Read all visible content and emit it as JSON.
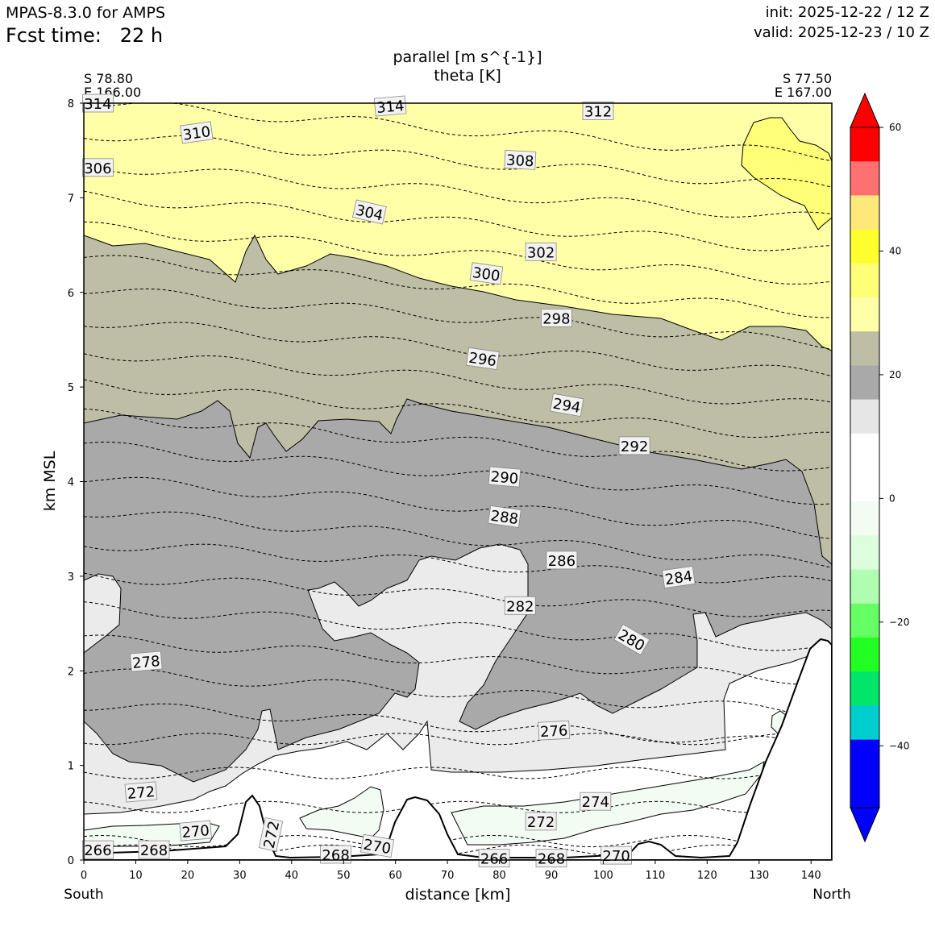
{
  "header": {
    "model": "MPAS-8.3.0 for AMPS",
    "fcst_time": "Fcst time:   22 h",
    "init": "init: 2025-12-22 / 12 Z",
    "valid": "valid: 2025-12-23 / 10 Z"
  },
  "chart_data": {
    "type": "cross-section contour",
    "title": "parallel [m s^{-1}]",
    "subtitle": "theta [K]",
    "xlabel": "distance [km]",
    "ylabel": "km MSL",
    "xlim": [
      0,
      144
    ],
    "ylim": [
      0,
      8
    ],
    "x_ticks": [
      0,
      10,
      20,
      30,
      40,
      50,
      60,
      70,
      80,
      90,
      100,
      110,
      120,
      130,
      140
    ],
    "y_ticks": [
      0,
      1,
      2,
      3,
      4,
      5,
      6,
      7,
      8
    ],
    "left_endpoint": {
      "lat": "S 78.80",
      "lon": "E 166.00",
      "direction": "South"
    },
    "right_endpoint": {
      "lat": "S 77.50",
      "lon": "E 167.00",
      "direction": "North"
    },
    "colorbar": {
      "ticks": [
        60,
        40,
        20,
        0,
        -20,
        -40
      ],
      "colors": [
        "#ff0000",
        "#ff0000",
        "#ff7070",
        "#ffe87a",
        "#ffff30",
        "#ffff78",
        "#ffffa8",
        "#bebea6",
        "#a9a9a9",
        "#e6e6e6",
        "#ffffff",
        "#ffffff",
        "#f2fcf2",
        "#ddfedd",
        "#b0feb0",
        "#66ff66",
        "#22ff22",
        "#00e66a",
        "#00cdcd",
        "#0000ff",
        "#0000ff",
        "#0000ff"
      ]
    },
    "fill_colors": {
      "pale_yellow": "#ffffa8",
      "yellow": "#ffff78",
      "olive_grey": "#bebea6",
      "dark_grey": "#a9a9a9",
      "light_grey": "#ebebeb",
      "white": "#ffffff",
      "pale_green": "#f2fcf2"
    },
    "theta_labels": [
      {
        "value": "314",
        "x": 2.7,
        "y": 8.0,
        "angle": 0
      },
      {
        "value": "314",
        "x": 59.0,
        "y": 7.97,
        "angle": -5
      },
      {
        "value": "312",
        "x": 99.0,
        "y": 7.92,
        "angle": 0
      },
      {
        "value": "310",
        "x": 21.7,
        "y": 7.69,
        "angle": -8
      },
      {
        "value": "308",
        "x": 84.0,
        "y": 7.4,
        "angle": 3
      },
      {
        "value": "306",
        "x": 2.7,
        "y": 7.32,
        "angle": 0
      },
      {
        "value": "304",
        "x": 55.0,
        "y": 6.85,
        "angle": 13
      },
      {
        "value": "302",
        "x": 88.0,
        "y": 6.43,
        "angle": 0
      },
      {
        "value": "300",
        "x": 77.5,
        "y": 6.2,
        "angle": 8
      },
      {
        "value": "298",
        "x": 91.0,
        "y": 5.73,
        "angle": 0
      },
      {
        "value": "296",
        "x": 76.8,
        "y": 5.3,
        "angle": 8
      },
      {
        "value": "294",
        "x": 93.0,
        "y": 4.81,
        "angle": 10
      },
      {
        "value": "292",
        "x": 106.0,
        "y": 4.38,
        "angle": 0
      },
      {
        "value": "290",
        "x": 81.0,
        "y": 4.05,
        "angle": 5
      },
      {
        "value": "288",
        "x": 81.0,
        "y": 3.63,
        "angle": 8
      },
      {
        "value": "286",
        "x": 92.0,
        "y": 3.17,
        "angle": 0
      },
      {
        "value": "284",
        "x": 114.5,
        "y": 2.99,
        "angle": -8
      },
      {
        "value": "282",
        "x": 84.0,
        "y": 2.69,
        "angle": 0
      },
      {
        "value": "280",
        "x": 105.5,
        "y": 2.33,
        "angle": 30
      },
      {
        "value": "278",
        "x": 12.0,
        "y": 2.1,
        "angle": -5
      },
      {
        "value": "276",
        "x": 90.5,
        "y": 1.37,
        "angle": -3
      },
      {
        "value": "274",
        "x": 98.5,
        "y": 0.62,
        "angle": 0
      },
      {
        "value": "272",
        "x": 11.0,
        "y": 0.72,
        "angle": -5
      },
      {
        "value": "272",
        "x": 88.0,
        "y": 0.41,
        "angle": 0
      },
      {
        "value": "272",
        "x": 36.0,
        "y": 0.27,
        "angle": -78
      },
      {
        "value": "270",
        "x": 21.5,
        "y": 0.31,
        "angle": -5
      },
      {
        "value": "270",
        "x": 56.5,
        "y": 0.15,
        "angle": 10
      },
      {
        "value": "270",
        "x": 102.5,
        "y": 0.05,
        "angle": 0
      },
      {
        "value": "268",
        "x": 13.5,
        "y": 0.11,
        "angle": 0
      },
      {
        "value": "268",
        "x": 48.5,
        "y": 0.06,
        "angle": 0
      },
      {
        "value": "268",
        "x": 90.0,
        "y": 0.02,
        "angle": 0
      },
      {
        "value": "266",
        "x": 2.7,
        "y": 0.11,
        "angle": 0
      },
      {
        "value": "266",
        "x": 79.0,
        "y": 0.02,
        "angle": 0
      }
    ]
  }
}
